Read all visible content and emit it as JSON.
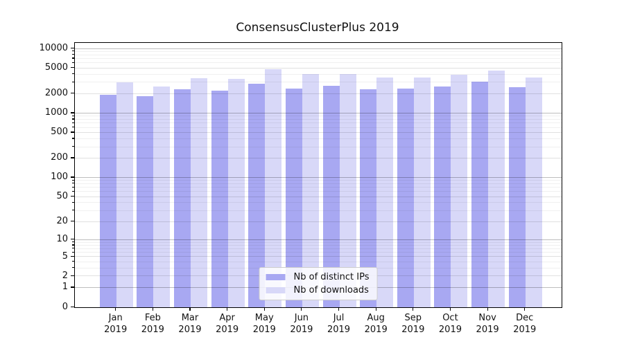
{
  "chart_data": {
    "type": "bar",
    "title": "ConsensusClusterPlus 2019",
    "categories": [
      "Jan",
      "Feb",
      "Mar",
      "Apr",
      "May",
      "Jun",
      "Jul",
      "Aug",
      "Sep",
      "Oct",
      "Nov",
      "Dec"
    ],
    "category_year": "2019",
    "series": [
      {
        "name": "Nb of distinct IPs",
        "color": "#a8a8f2",
        "values": [
          1950,
          1830,
          2370,
          2240,
          2850,
          2450,
          2670,
          2370,
          2420,
          2600,
          3110,
          2560
        ]
      },
      {
        "name": "Nb of downloads",
        "color": "#d8d8f8",
        "values": [
          3010,
          2620,
          3520,
          3430,
          4850,
          4020,
          4080,
          3580,
          3610,
          3920,
          4580,
          3610
        ]
      }
    ],
    "xlabel": "",
    "ylabel": "",
    "y_ticks": [
      0,
      1,
      2,
      5,
      10,
      20,
      50,
      100,
      200,
      500,
      1000,
      2000,
      5000,
      10000
    ],
    "yscale": "log10(1+v)",
    "y_max": 12330,
    "ylim": [
      0,
      12330
    ],
    "grid": "both",
    "legend_position": "lower center",
    "colors": {
      "grid_major": "#bdbdbd",
      "grid_sub": "#e0e0e0",
      "grid_minor": "#f0f0f0",
      "axis": "#000000",
      "background": "#ffffff",
      "text": "#111111"
    }
  }
}
